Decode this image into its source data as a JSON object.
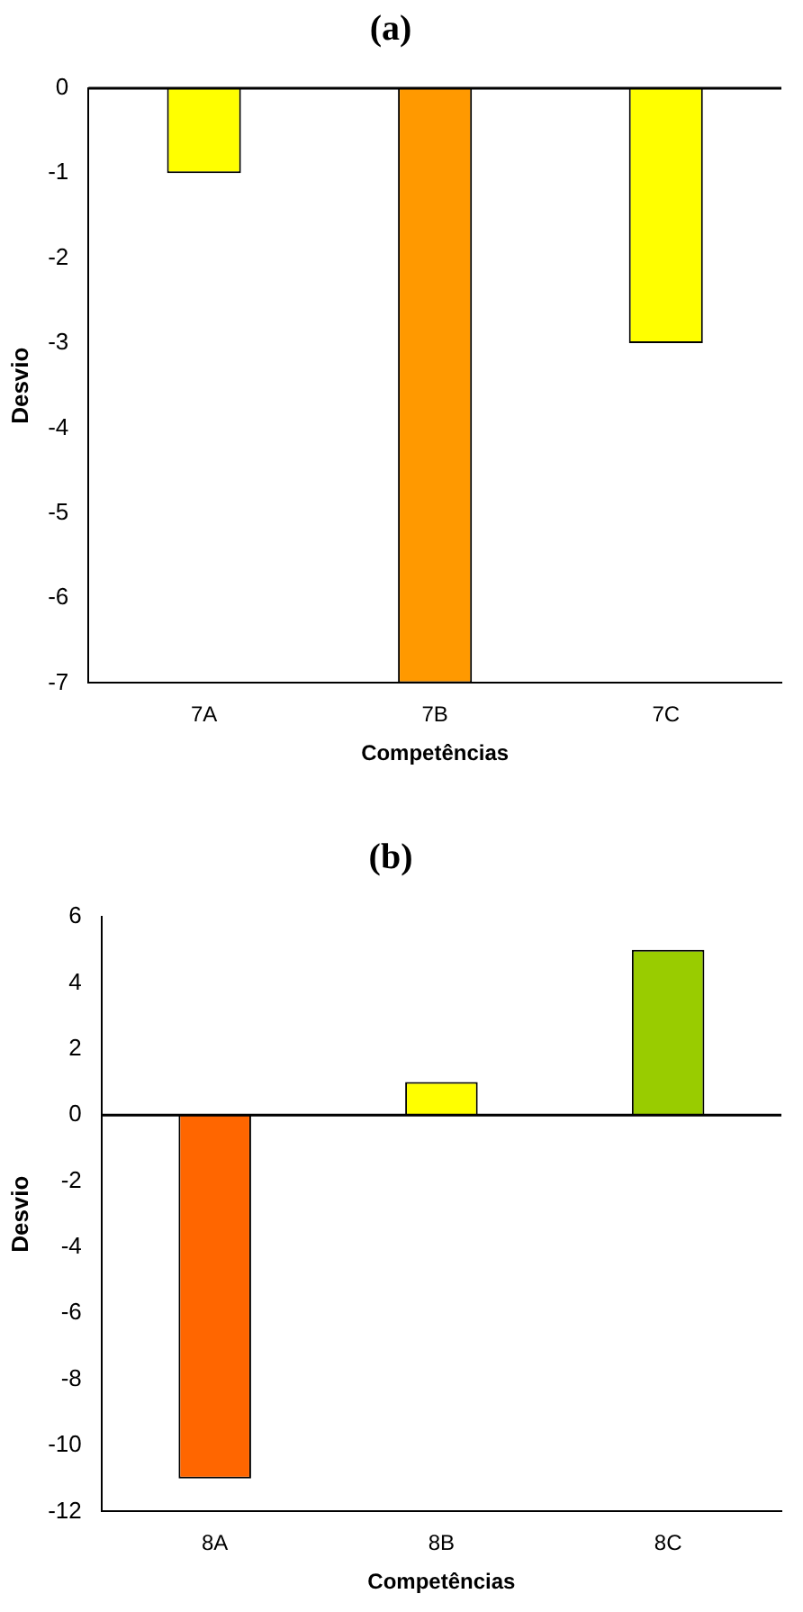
{
  "chart_data": [
    {
      "type": "bar",
      "title": "(a)",
      "xlabel": "Competências",
      "ylabel": "Desvio",
      "categories": [
        "7A",
        "7B",
        "7C"
      ],
      "values": [
        -1,
        -7,
        -3
      ],
      "colors": [
        "#ffff00",
        "#ff9900",
        "#ffff00"
      ],
      "ylim": [
        -7,
        0
      ],
      "yticks": [
        -7,
        -6,
        -5,
        -4,
        -3,
        -2,
        -1,
        0
      ],
      "grid": false,
      "legend": false,
      "ref_lines": [
        {
          "axis": "y",
          "value": 0
        }
      ]
    },
    {
      "type": "bar",
      "title": "(b)",
      "xlabel": "Competências",
      "ylabel": "Desvio",
      "categories": [
        "8A",
        "8B",
        "8C"
      ],
      "values": [
        -11,
        1,
        5
      ],
      "colors": [
        "#ff6600",
        "#ffff00",
        "#99cc00"
      ],
      "ylim": [
        -12,
        6
      ],
      "yticks": [
        -12,
        -10,
        -8,
        -6,
        -4,
        -2,
        0,
        2,
        4,
        6
      ],
      "grid": false,
      "legend": false,
      "ref_lines": [
        {
          "axis": "y",
          "value": 0
        }
      ]
    }
  ]
}
